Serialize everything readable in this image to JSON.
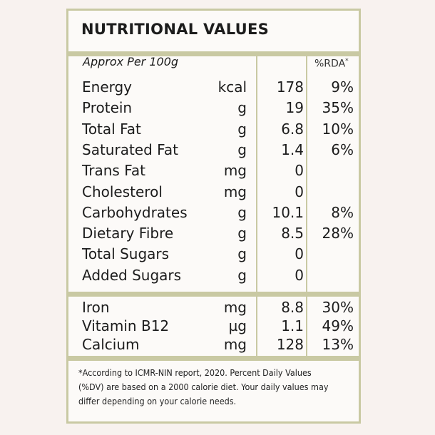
{
  "title": "NUTRITIONAL VALUES",
  "serving_label": "Approx Per 100g",
  "rda_header": "%RDA",
  "rda_marker": "*",
  "nutrients": [
    {
      "name": "Energy",
      "unit": "kcal",
      "value": "178",
      "rda": "9%"
    },
    {
      "name": "Protein",
      "unit": "g",
      "value": "19",
      "rda": "35%"
    },
    {
      "name": "Total Fat",
      "unit": "g",
      "value": "6.8",
      "rda": "10%"
    },
    {
      "name": "Saturated Fat",
      "unit": "g",
      "value": "1.4",
      "rda": "6%"
    },
    {
      "name": "Trans Fat",
      "unit": "mg",
      "value": "0",
      "rda": ""
    },
    {
      "name": "Cholesterol",
      "unit": "mg",
      "value": "0",
      "rda": ""
    },
    {
      "name": "Carbohydrates",
      "unit": "g",
      "value": "10.1",
      "rda": "8%"
    },
    {
      "name": "Dietary Fibre",
      "unit": "g",
      "value": "8.5",
      "rda": "28%"
    },
    {
      "name": "Total Sugars",
      "unit": "g",
      "value": "0",
      "rda": ""
    },
    {
      "name": "Added Sugars",
      "unit": "g",
      "value": "0",
      "rda": ""
    }
  ],
  "minerals": [
    {
      "name": "Iron",
      "unit": "mg",
      "value": "8.8",
      "rda": "30%"
    },
    {
      "name": "Vitamin B12",
      "unit": "µg",
      "value": "1.1",
      "rda": "49%"
    },
    {
      "name": "Calcium",
      "unit": "mg",
      "value": "128",
      "rda": "13%"
    }
  ],
  "footnote": [
    "*According to ICMR-NIN report, 2020. Percent Daily Values",
    "(%DV) are based on a 2000 calorie diet. Your daily values may",
    "differ depending on your calorie needs."
  ],
  "colors": {
    "border": "#c9c9a3",
    "background": "#f8f2ef",
    "text": "#1c1c1c"
  }
}
